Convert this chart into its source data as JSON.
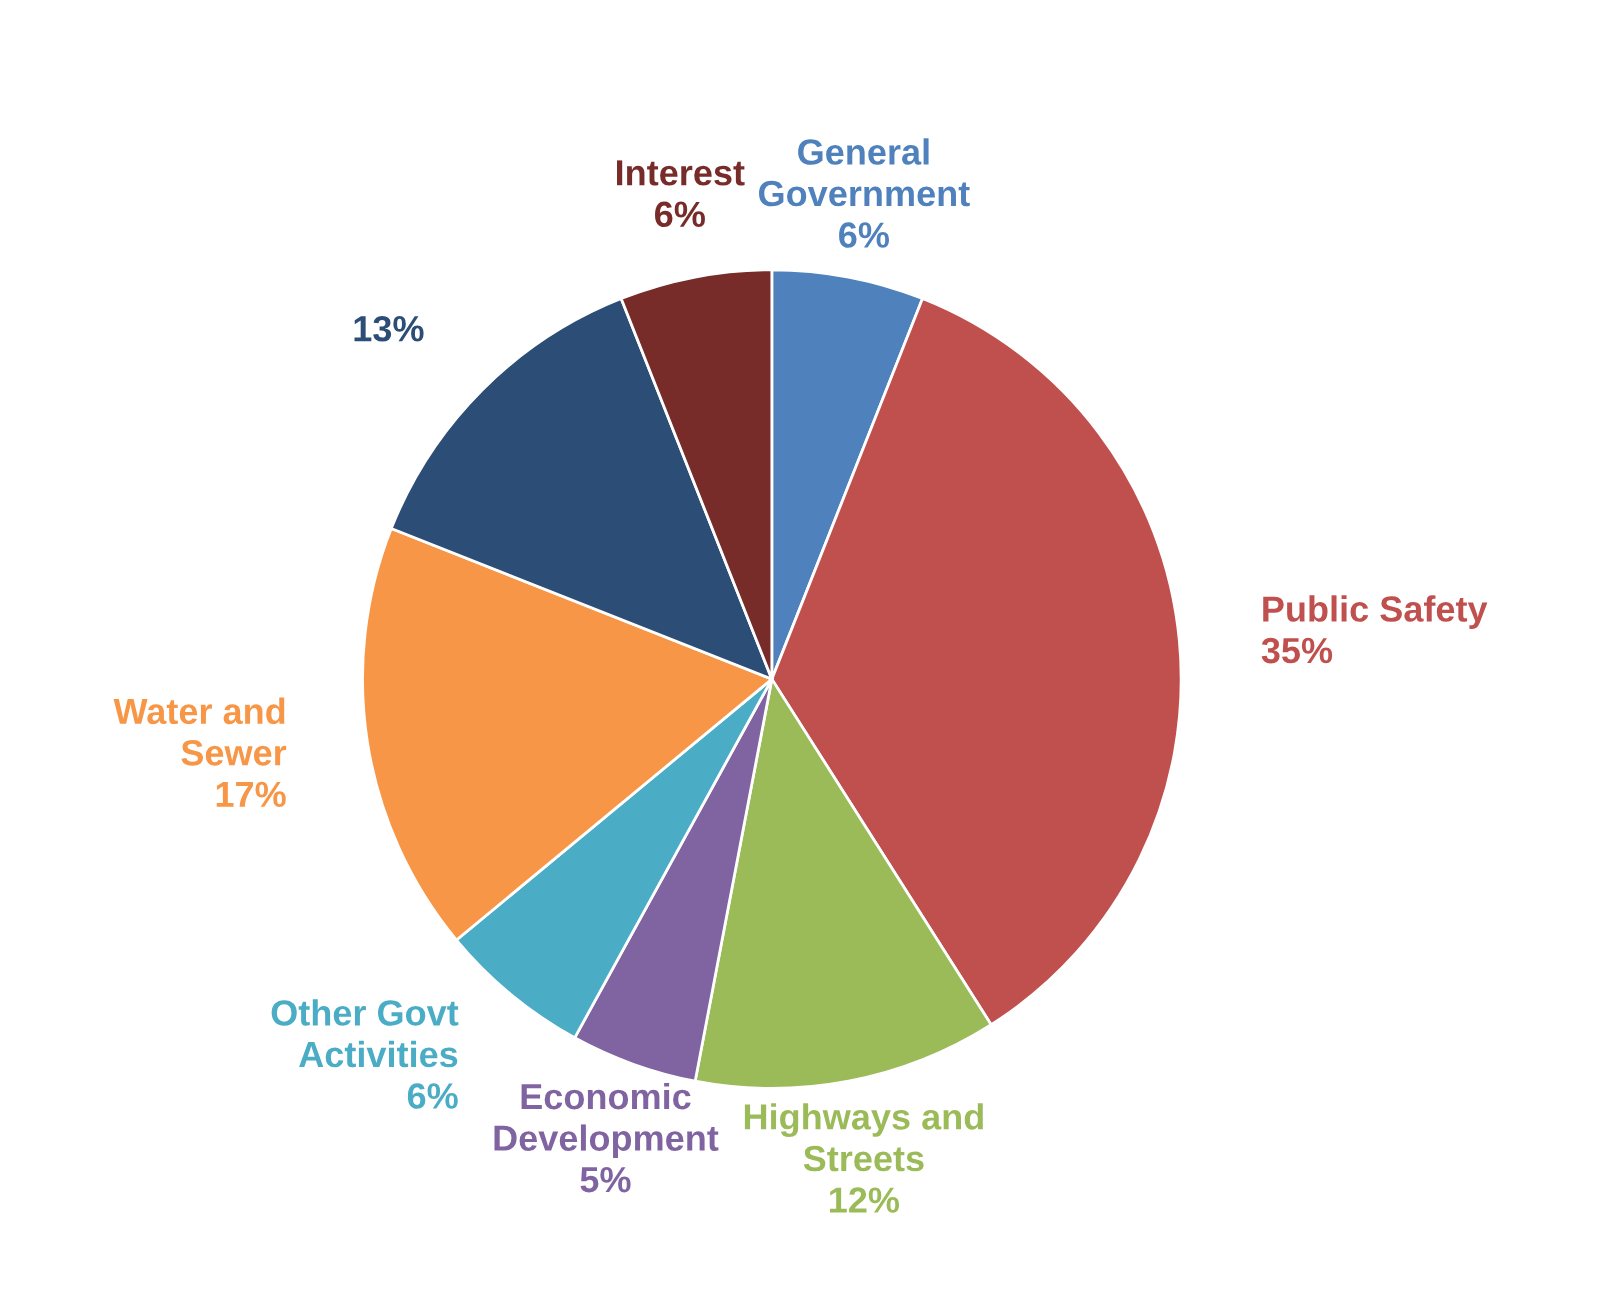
{
  "chart_data": {
    "type": "pie",
    "categories": [
      "General\nGovernment",
      "Public Safety",
      "Highways and\nStreets",
      "Economic\nDevelopment",
      "Other Govt\nActivities",
      "Water and\nSewer",
      null,
      "Interest"
    ],
    "values": [
      6,
      35,
      12,
      5,
      6,
      17,
      13,
      6
    ],
    "value_labels": [
      "6%",
      "35%",
      "12%",
      "5%",
      "6%",
      "17%",
      "13%",
      "6%"
    ],
    "colors": [
      "#4f81bd",
      "#c0504d",
      "#9bbb59",
      "#8064a2",
      "#4bacc6",
      "#f79646",
      "#2c4d75",
      "#772c2a"
    ],
    "legend": false
  }
}
